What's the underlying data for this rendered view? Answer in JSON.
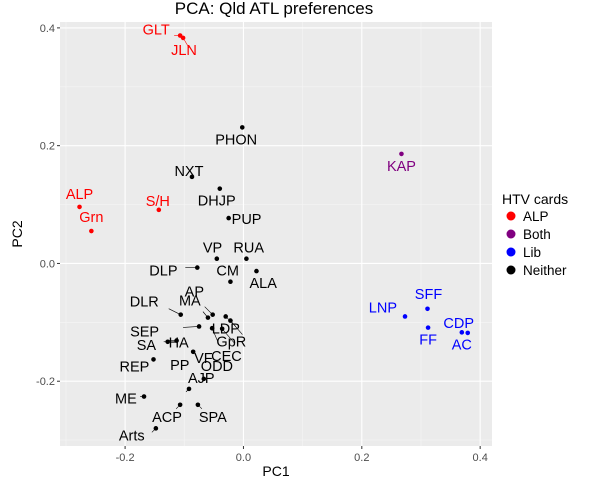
{
  "chart_data": {
    "type": "scatter",
    "title": "PCA: Qld ATL preferences",
    "xlabel": "PC1",
    "ylabel": "PC2",
    "xlim": [
      -0.31,
      0.42
    ],
    "ylim": [
      -0.31,
      0.41
    ],
    "x_ticks": [
      -0.2,
      0.0,
      0.2,
      0.4
    ],
    "y_ticks": [
      -0.2,
      0.0,
      0.2,
      0.4
    ],
    "x_tick_labels": [
      "-0.2",
      "0.0",
      "0.2",
      "0.4"
    ],
    "y_tick_labels": [
      "-0.2",
      "0.0",
      "0.2",
      "0.4"
    ],
    "grid": true,
    "legend": {
      "title": "HTV cards",
      "position": "right",
      "entries": [
        {
          "name": "ALP",
          "color": "#ff0000"
        },
        {
          "name": "Both",
          "color": "#800080"
        },
        {
          "name": "Lib",
          "color": "#0000ff"
        },
        {
          "name": "Neither",
          "color": "#000000"
        }
      ]
    },
    "points": [
      {
        "label": "GLT",
        "x": -0.107,
        "y": 0.387,
        "group": "ALP"
      },
      {
        "label": "JLN",
        "x": -0.102,
        "y": 0.383,
        "group": "ALP"
      },
      {
        "label": "PHON",
        "x": -0.002,
        "y": 0.231,
        "group": "Neither"
      },
      {
        "label": "KAP",
        "x": 0.267,
        "y": 0.186,
        "group": "Both"
      },
      {
        "label": "NXT",
        "x": -0.087,
        "y": 0.147,
        "group": "Neither"
      },
      {
        "label": "DHJP",
        "x": -0.04,
        "y": 0.127,
        "group": "Neither"
      },
      {
        "label": "ALP",
        "x": -0.277,
        "y": 0.096,
        "group": "ALP"
      },
      {
        "label": "S/H",
        "x": -0.143,
        "y": 0.091,
        "group": "ALP"
      },
      {
        "label": "PUP",
        "x": -0.025,
        "y": 0.077,
        "group": "Neither"
      },
      {
        "label": "Grn",
        "x": -0.257,
        "y": 0.055,
        "group": "ALP"
      },
      {
        "label": "VP",
        "x": -0.045,
        "y": 0.008,
        "group": "Neither"
      },
      {
        "label": "RUA",
        "x": 0.005,
        "y": 0.008,
        "group": "Neither"
      },
      {
        "label": "DLP",
        "x": -0.078,
        "y": -0.007,
        "group": "Neither"
      },
      {
        "label": "CM",
        "x": -0.022,
        "y": -0.031,
        "group": "Neither"
      },
      {
        "label": "ALA",
        "x": 0.022,
        "y": -0.013,
        "group": "Neither"
      },
      {
        "label": "AP",
        "x": -0.052,
        "y": -0.087,
        "group": "Neither"
      },
      {
        "label": "DLR",
        "x": -0.106,
        "y": -0.087,
        "group": "Neither"
      },
      {
        "label": "LDP",
        "x": -0.03,
        "y": -0.09,
        "group": "Neither"
      },
      {
        "label": "MA",
        "x": -0.06,
        "y": -0.092,
        "group": "Neither"
      },
      {
        "label": "GpR",
        "x": -0.022,
        "y": -0.097,
        "group": "Neither"
      },
      {
        "label": "SEP",
        "x": -0.075,
        "y": -0.107,
        "group": "Neither"
      },
      {
        "label": "VF",
        "x": -0.053,
        "y": -0.11,
        "group": "Neither"
      },
      {
        "label": "CEC",
        "x": -0.036,
        "y": -0.111,
        "group": "Neither"
      },
      {
        "label": "HA",
        "x": -0.113,
        "y": -0.131,
        "group": "Neither"
      },
      {
        "label": "SA",
        "x": -0.128,
        "y": -0.133,
        "group": "Neither"
      },
      {
        "label": "PP",
        "x": -0.085,
        "y": -0.15,
        "group": "Neither"
      },
      {
        "label": "REP",
        "x": -0.152,
        "y": -0.163,
        "group": "Neither"
      },
      {
        "label": "ODD",
        "x": -0.067,
        "y": -0.196,
        "group": "Neither"
      },
      {
        "label": "AJP",
        "x": -0.092,
        "y": -0.213,
        "group": "Neither"
      },
      {
        "label": "ME",
        "x": -0.168,
        "y": -0.226,
        "group": "Neither"
      },
      {
        "label": "ACP",
        "x": -0.107,
        "y": -0.24,
        "group": "Neither"
      },
      {
        "label": "SPA",
        "x": -0.077,
        "y": -0.24,
        "group": "Neither"
      },
      {
        "label": "Arts",
        "x": -0.148,
        "y": -0.28,
        "group": "Neither"
      },
      {
        "label": "LNP",
        "x": 0.273,
        "y": -0.09,
        "group": "Lib"
      },
      {
        "label": "SFF",
        "x": 0.311,
        "y": -0.077,
        "group": "Lib"
      },
      {
        "label": "CDP",
        "x": 0.379,
        "y": -0.118,
        "group": "Lib"
      },
      {
        "label": "FF",
        "x": 0.312,
        "y": -0.109,
        "group": "Lib"
      },
      {
        "label": "AC",
        "x": 0.369,
        "y": -0.117,
        "group": "Lib"
      }
    ]
  }
}
